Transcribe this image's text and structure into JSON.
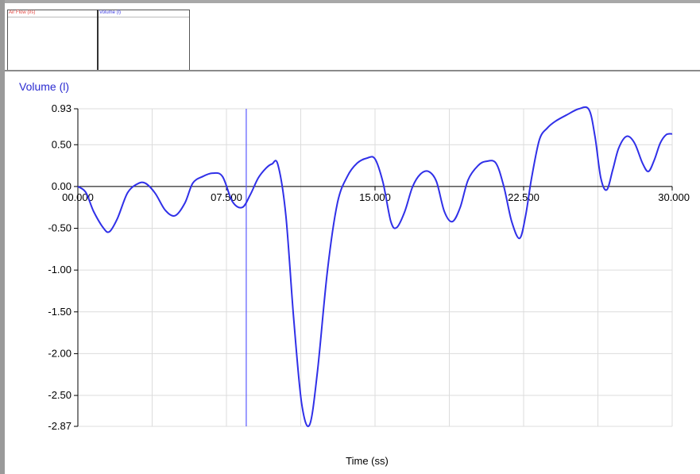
{
  "meters": [
    {
      "label": "Air Flow (l/s)",
      "color": "#e0403a"
    },
    {
      "label": "Volume (l)",
      "color": "#3a3ae0"
    }
  ],
  "chart_data": {
    "type": "line",
    "title": "Volume (l)",
    "xlabel": "Time (ss)",
    "ylabel": "",
    "xlim": [
      0,
      30
    ],
    "ylim": [
      -2.87,
      0.93
    ],
    "grid": true,
    "line_color": "#3030e8",
    "cursor_x": 8.5,
    "x_ticks": [
      {
        "value": 0,
        "label": "00.000"
      },
      {
        "value": 7.5,
        "label": "07.500"
      },
      {
        "value": 15,
        "label": "15.000"
      },
      {
        "value": 22.5,
        "label": "22.500"
      },
      {
        "value": 30,
        "label": "30.000"
      }
    ],
    "y_ticks": [
      {
        "value": 0.93,
        "label": "0.93"
      },
      {
        "value": 0.5,
        "label": "0.50"
      },
      {
        "value": 0.0,
        "label": "0.00"
      },
      {
        "value": -0.5,
        "label": "-0.50"
      },
      {
        "value": -1.0,
        "label": "-1.00"
      },
      {
        "value": -1.5,
        "label": "-1.50"
      },
      {
        "value": -2.0,
        "label": "-2.00"
      },
      {
        "value": -2.5,
        "label": "-2.50"
      },
      {
        "value": -2.87,
        "label": "-2.87"
      }
    ],
    "series": [
      {
        "x": [
          0,
          0.4,
          0.8,
          1.3,
          1.6,
          2.0,
          2.5,
          3.0,
          3.4,
          3.9,
          4.4,
          4.9,
          5.4,
          5.8,
          6.3,
          6.8,
          7.3,
          7.8,
          8.3,
          8.7,
          9.1,
          9.5,
          9.8,
          10.1,
          10.5,
          10.9,
          11.3,
          11.7,
          12.1,
          12.6,
          13.1,
          13.6,
          14.1,
          14.6,
          15.0,
          15.4,
          15.8,
          16.1,
          16.5,
          16.9,
          17.3,
          17.7,
          18.1,
          18.5,
          18.9,
          19.3,
          19.7,
          20.2,
          20.6,
          21.1,
          21.5,
          21.9,
          22.3,
          22.6,
          22.9,
          23.3,
          23.7,
          24.1,
          24.7,
          25.3,
          25.8,
          26.1,
          26.4,
          26.7,
          27.0,
          27.3,
          27.7,
          28.1,
          28.5,
          28.8,
          29.1,
          29.4,
          29.7,
          30.0
        ],
        "y": [
          0.0,
          -0.07,
          -0.3,
          -0.5,
          -0.54,
          -0.38,
          -0.08,
          0.03,
          0.04,
          -0.08,
          -0.28,
          -0.35,
          -0.2,
          0.04,
          0.12,
          0.16,
          0.12,
          -0.18,
          -0.25,
          -0.1,
          0.1,
          0.22,
          0.27,
          0.26,
          -0.35,
          -1.6,
          -2.6,
          -2.85,
          -2.2,
          -1.0,
          -0.2,
          0.12,
          0.28,
          0.34,
          0.33,
          0.05,
          -0.42,
          -0.49,
          -0.3,
          -0.0,
          0.15,
          0.18,
          0.06,
          -0.3,
          -0.42,
          -0.25,
          0.08,
          0.25,
          0.3,
          0.28,
          0.0,
          -0.42,
          -0.62,
          -0.35,
          0.1,
          0.56,
          0.7,
          0.78,
          0.86,
          0.93,
          0.92,
          0.6,
          0.1,
          -0.04,
          0.2,
          0.46,
          0.6,
          0.52,
          0.28,
          0.18,
          0.32,
          0.52,
          0.62,
          0.63
        ]
      }
    ]
  }
}
